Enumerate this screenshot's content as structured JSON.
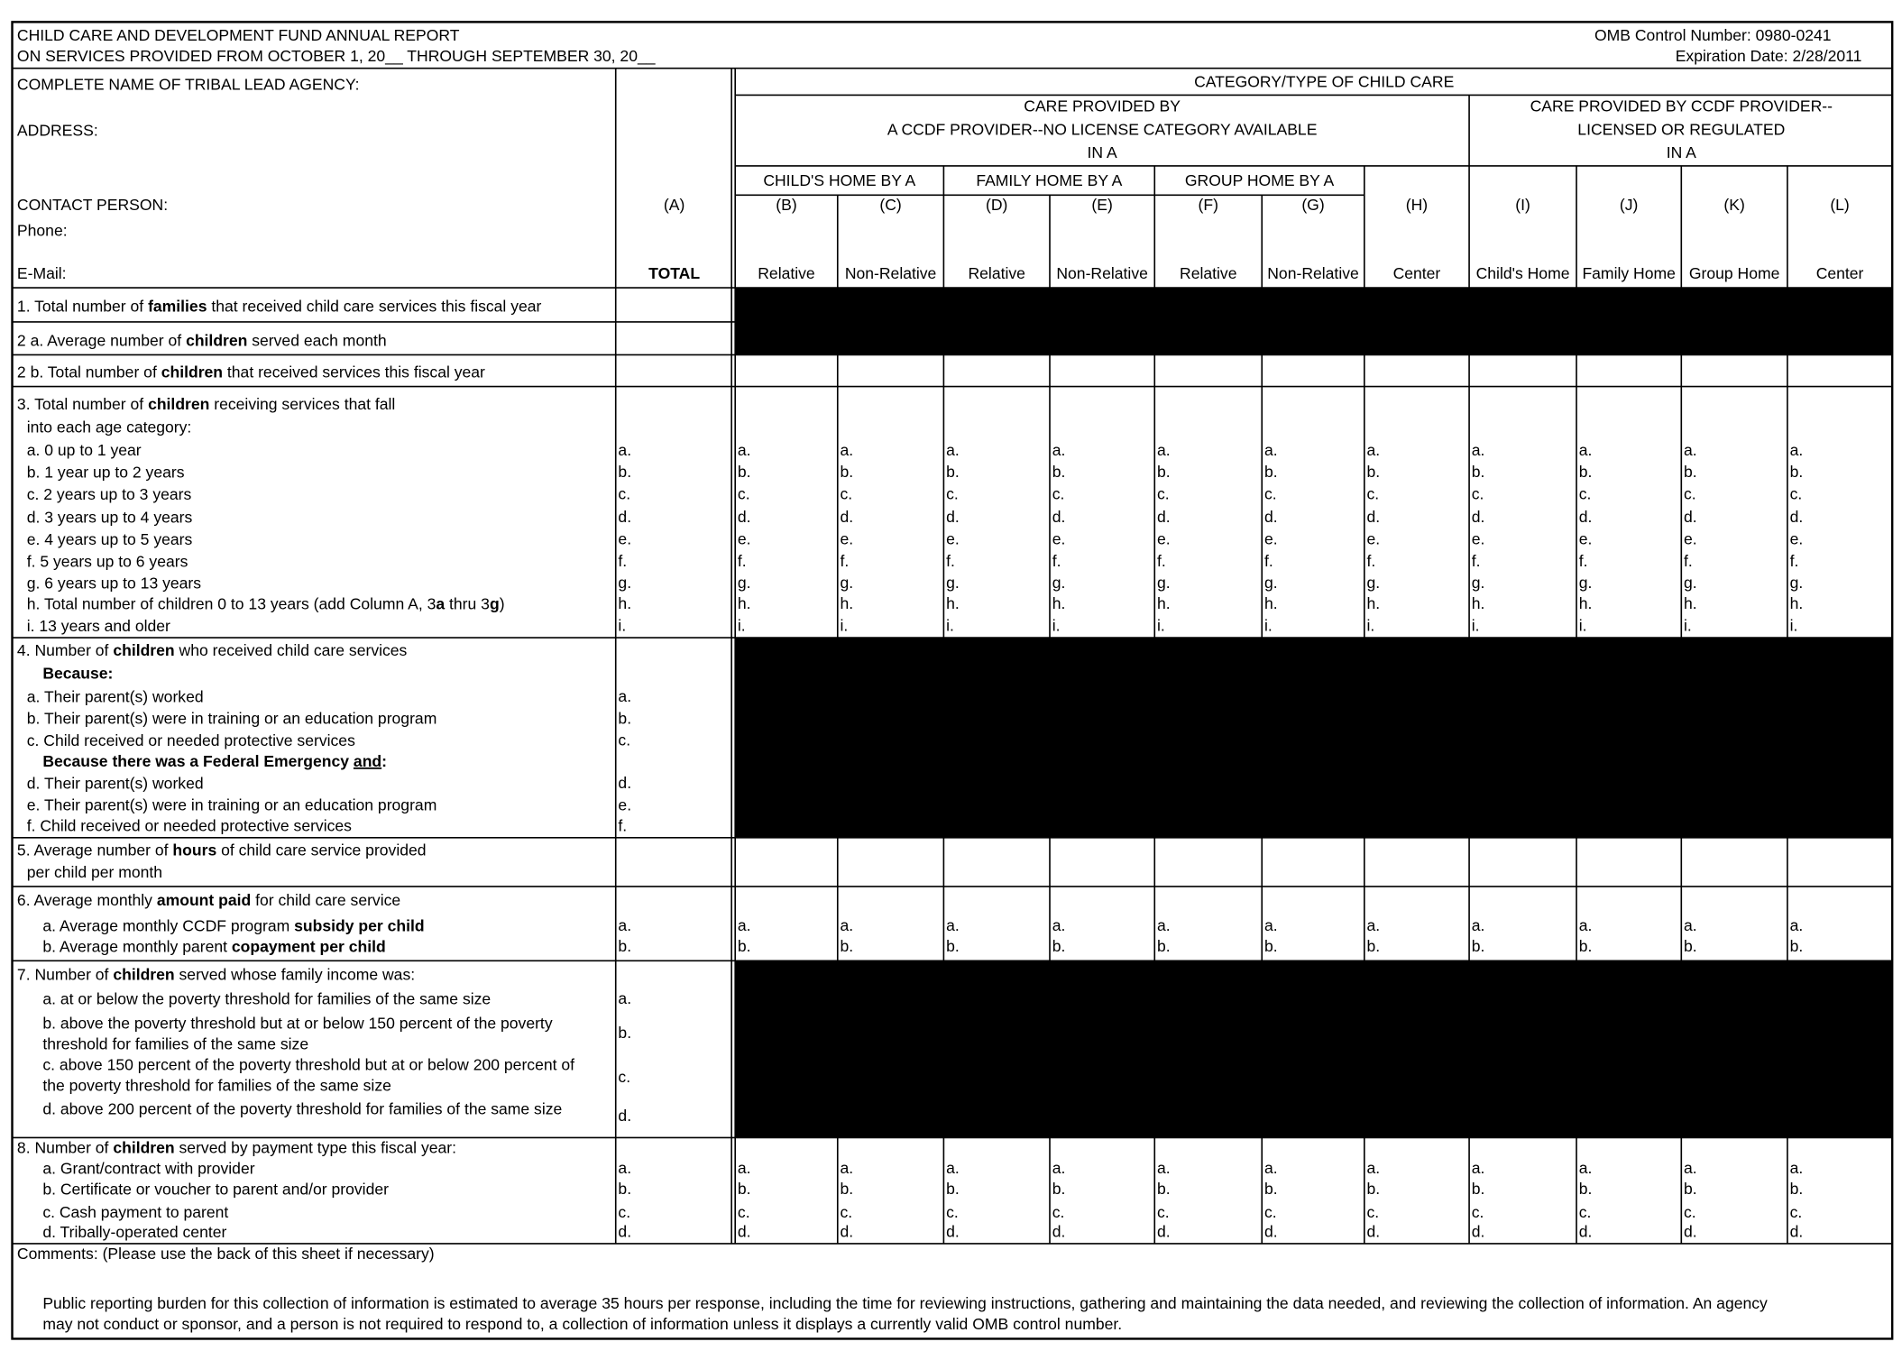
{
  "header": {
    "title_lines": [
      "CHILD CARE AND DEVELOPMENT FUND ANNUAL REPORT",
      "ON SERVICES PROVIDED FROM OCTOBER 1, 20__ THROUGH SEPTEMBER 30, 20__"
    ],
    "omb": "OMB Control  Number: 0980-0241",
    "expiration": "Expiration Date: 2/28/2011"
  },
  "agency_fields": [
    "COMPLETE NAME OF TRIBAL LEAD AGENCY:",
    "ADDRESS:",
    "CONTACT PERSON:",
    "Phone:",
    "E-Mail:"
  ],
  "category_title": "CATEGORY/TYPE OF CHILD CARE",
  "groups": [
    [
      "CARE PROVIDED BY",
      "A CCDF PROVIDER--NO LICENSE CATEGORY AVAILABLE",
      "IN A"
    ],
    [
      "CARE PROVIDED BY CCDF PROVIDER--",
      "LICENSED OR REGULATED",
      "IN A"
    ]
  ],
  "subgroups": [
    "CHILD'S HOME BY A",
    "FAMILY HOME BY A",
    "GROUP HOME BY A"
  ],
  "columns": [
    {
      "code": "(A)",
      "label": "TOTAL"
    },
    {
      "code": "(B)",
      "label": "Relative"
    },
    {
      "code": "(C)",
      "label": "Non-Relative"
    },
    {
      "code": "(D)",
      "label": "Relative"
    },
    {
      "code": "(E)",
      "label": "Non-Relative"
    },
    {
      "code": "(F)",
      "label": "Relative"
    },
    {
      "code": "(G)",
      "label": "Non-Relative"
    },
    {
      "code": "(H)",
      "label": "Center"
    },
    {
      "code": "(I)",
      "label": "Child's Home"
    },
    {
      "code": "(J)",
      "label": "Family Home"
    },
    {
      "code": "(K)",
      "label": "Group Home"
    },
    {
      "code": "(L)",
      "label": "Center"
    }
  ],
  "rows": [
    {
      "shaded": true,
      "lines": [
        [
          "1. Total number of ",
          {
            "t": "families",
            "b": true
          },
          " that received child care services this fiscal year"
        ]
      ],
      "letters": []
    },
    {
      "shaded": true,
      "lines": [
        [
          "2 a.  Average number of ",
          {
            "t": "children",
            "b": true
          },
          " served each month"
        ]
      ],
      "letters": []
    },
    {
      "shaded": false,
      "lines": [
        [
          "2 b.  Total number of ",
          {
            "t": "children",
            "b": true
          },
          " that received services this fiscal year"
        ]
      ],
      "letters": []
    },
    {
      "shaded": false,
      "lines": [
        [
          "3. Total number of ",
          {
            "t": "children",
            "b": true
          },
          " receiving services that fall"
        ],
        [
          "into each age category:"
        ],
        [
          "a. 0 up to 1 year"
        ],
        [
          "b. 1 year up to 2 years"
        ],
        [
          "c. 2 years up to 3 years"
        ],
        [
          "d. 3 years up to 4 years"
        ],
        [
          "e. 4 years up to 5 years"
        ],
        [
          "f.  5 years up to 6 years"
        ],
        [
          "g. 6 years up to 13 years"
        ],
        [
          "h. Total number of children 0 to 13 years (add Column A, 3",
          {
            "t": "a",
            "b": true
          },
          " thru 3",
          {
            "t": "g",
            "b": true
          },
          ")"
        ],
        [
          "i. 13 years and older"
        ]
      ],
      "letters": [
        "a.",
        "b.",
        "c.",
        "d.",
        "e.",
        "f.",
        "g.",
        "h.",
        "i."
      ]
    },
    {
      "shaded": true,
      "lines": [
        [
          "4. Number of ",
          {
            "t": "children",
            "b": true
          },
          " who received child care services"
        ],
        [
          {
            "t": "Because:",
            "b": true
          }
        ],
        [
          "a. Their parent(s) worked"
        ],
        [
          "b. Their parent(s) were in training or an education program"
        ],
        [
          "c. Child received or needed protective services"
        ],
        [
          {
            "t": "Because there was a Federal  Emergency  ",
            "b": true
          },
          {
            "t": "and",
            "b": true,
            "u": true
          },
          {
            "t": ":",
            "b": true
          }
        ],
        [
          "d. Their parent(s) worked"
        ],
        [
          "e. Their parent(s) were in training or an education program"
        ],
        [
          "f.  Child received or needed protective services"
        ]
      ],
      "letters": [
        "a.",
        "b.",
        "c.",
        "d.",
        "e.",
        "f."
      ]
    },
    {
      "shaded": false,
      "lines": [
        [
          "5. Average number of ",
          {
            "t": "hours",
            "b": true
          },
          " of child care service provided"
        ],
        [
          "per child per month"
        ]
      ],
      "letters": []
    },
    {
      "shaded": false,
      "lines": [
        [
          "6. Average monthly ",
          {
            "t": "amount paid",
            "b": true
          },
          " for child care service"
        ],
        [
          "a. Average monthly CCDF program ",
          {
            "t": "subsidy per child",
            "b": true
          }
        ],
        [
          "b. Average monthly parent ",
          {
            "t": "copayment per child",
            "b": true
          }
        ]
      ],
      "letters": [
        "a.",
        "b."
      ]
    },
    {
      "shaded": true,
      "lines": [
        [
          "7. Number of ",
          {
            "t": "children",
            "b": true
          },
          " served whose family income was:"
        ],
        [
          "a. at or below the poverty threshold for families of the same size"
        ],
        [
          "b. above the poverty threshold but at or below 150 percent of the poverty"
        ],
        [
          "threshold for families of the same size"
        ],
        [
          "c. above 150 percent of the poverty threshold but at or below 200 percent of"
        ],
        [
          "the poverty threshold for families of the same size"
        ],
        [
          "d. above 200 percent of the poverty threshold for families of the same size"
        ]
      ],
      "letters": [
        "a.",
        "b.",
        "c.",
        "d."
      ]
    },
    {
      "shaded": false,
      "lines": [
        [
          "8. Number of ",
          {
            "t": "children",
            "b": true
          },
          " served by payment type this fiscal year:"
        ],
        [
          "a. Grant/contract with provider"
        ],
        [
          "b. Certificate or voucher to parent and/or provider"
        ],
        [
          "c. Cash payment to parent"
        ],
        [
          "d. Tribally-operated center"
        ]
      ],
      "letters": [
        "a.",
        "b.",
        "c.",
        "d."
      ]
    }
  ],
  "comments": "Comments:  (Please use the back of this sheet if necessary)",
  "burden": [
    "Public reporting burden for this collection of information is estimated to average 35 hours per response, including the time for reviewing instructions, gathering and maintaining the data needed, and reviewing the collection of information. An agency",
    "may not conduct or sponsor, and a person is not required to respond to, a collection of information unless it displays a currently valid OMB control number."
  ]
}
